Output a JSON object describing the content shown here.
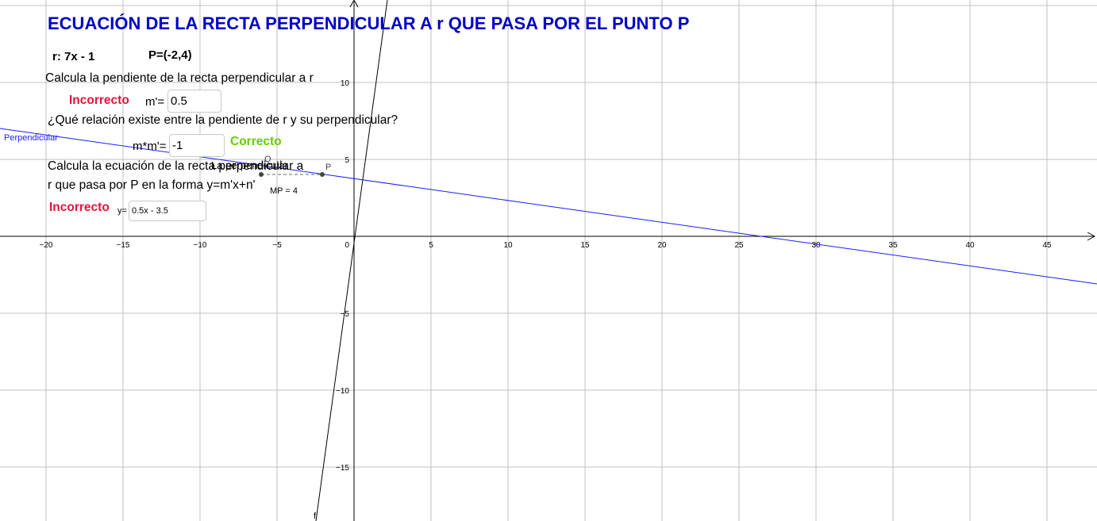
{
  "title": "ECUACIÓN DE LA RECTA PERPENDICULAR A r QUE PASA POR EL PUNTO P",
  "given": {
    "line_r": "r: 7x - 1",
    "point_p": "P=(-2,4)"
  },
  "q1": {
    "prompt": "Calcula la pendiente de la recta perpendicular a r",
    "feedback": "Incorrecto",
    "label": "m'=",
    "value": "0.5"
  },
  "q2": {
    "prompt": "¿Qué relación existe entre la pendiente de r y su perpendicular?",
    "feedback": "Correcto",
    "label": "m*m'=",
    "value": "-1"
  },
  "q3": {
    "prompt_line1": "Calcula la ecuación de la recta perpendicular a",
    "prompt_line2": "r que pasa por P en la forma y=m'x+n'",
    "feedback": "Incorrecto",
    "label": "y=",
    "value": "0.5x - 3.5"
  },
  "graph": {
    "x_ticks": [
      "−20",
      "−15",
      "−10",
      "−5",
      "0",
      "5",
      "10",
      "15",
      "20",
      "25",
      "30",
      "35",
      "40",
      "45"
    ],
    "y_ticks": [
      "10",
      "5",
      "−5",
      "−10",
      "−15"
    ],
    "perpendicular_label": "Perpendicular",
    "line_r_label": "f",
    "point_p_label": "P",
    "point_q_label": "Q",
    "overlap_label": "La perpendicular",
    "mp_label": "MP = 4",
    "colors": {
      "grid": "#c0c0c0",
      "axis": "#000000",
      "line_r": "#000000",
      "perpendicular": "#1c1cff",
      "point": "#444444",
      "title": "#0000c8",
      "incorrect": "#e8123c",
      "correct": "#66cc00"
    }
  }
}
